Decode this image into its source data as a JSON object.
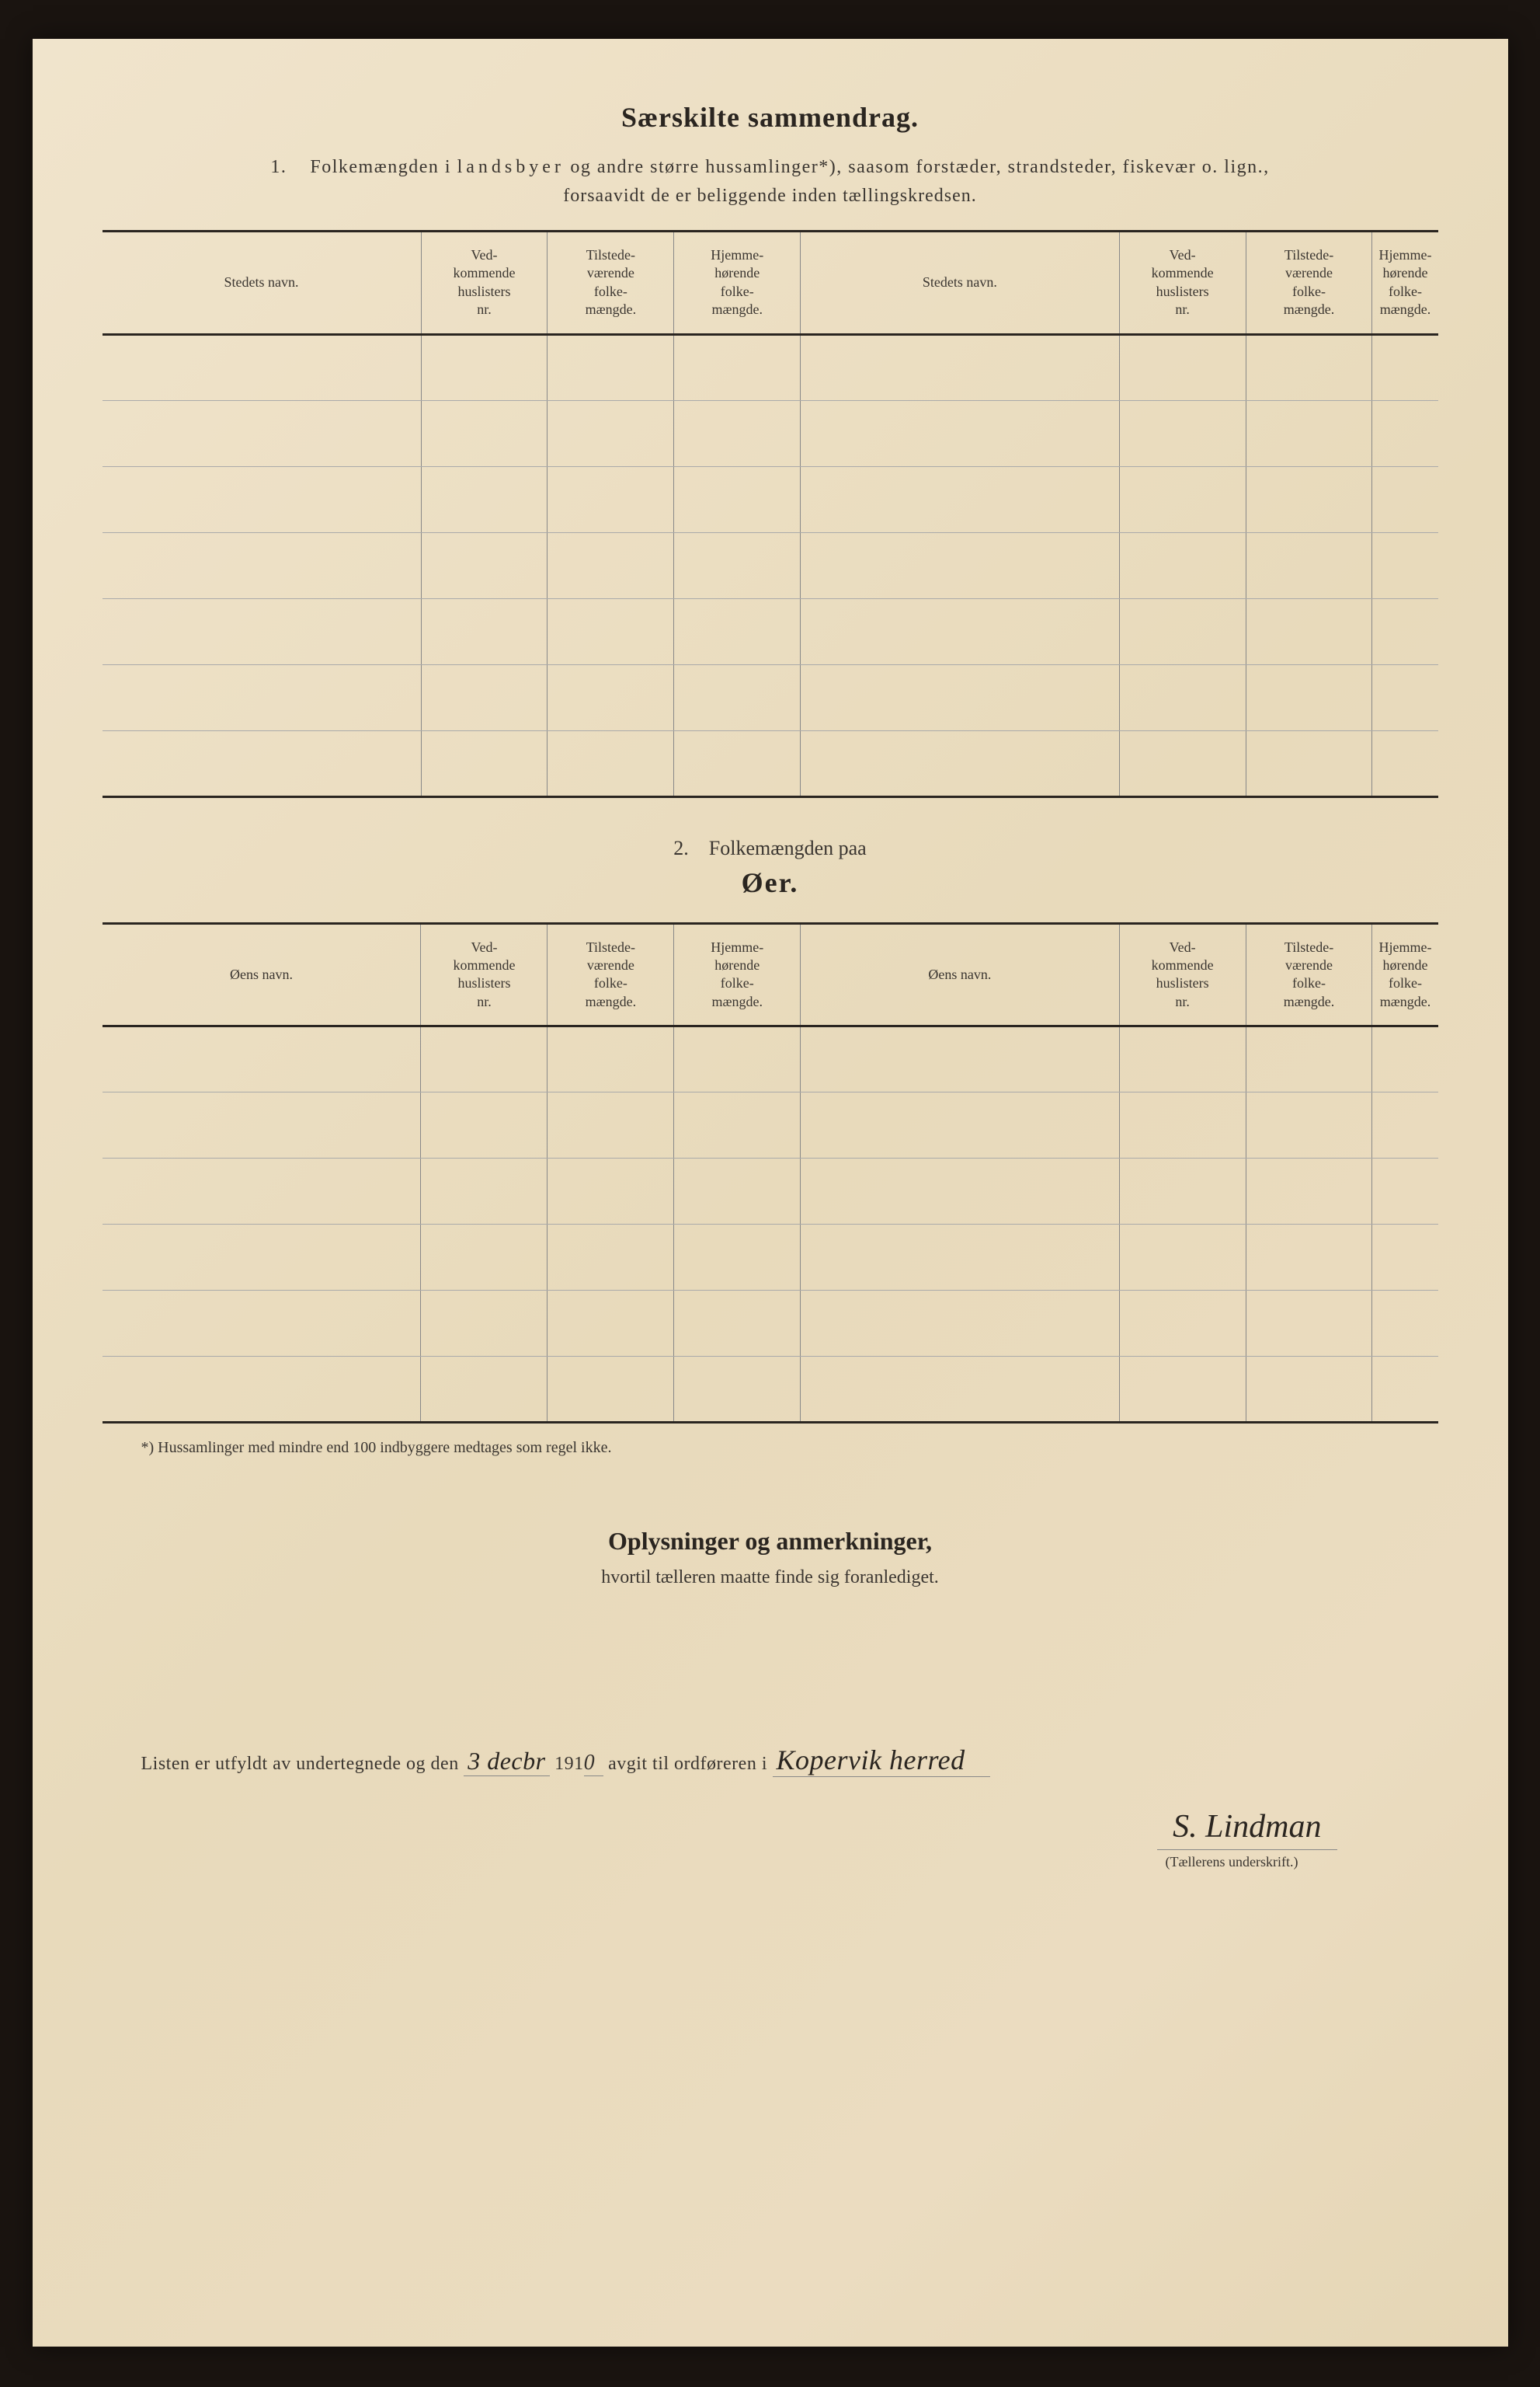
{
  "page": {
    "background_color": "#ebdcc0",
    "text_color": "#3a3530"
  },
  "main_title": "Særskilte sammendrag.",
  "section1": {
    "number": "1.",
    "description_part1": "Folkemængden i",
    "description_spaced": "landsbyer",
    "description_part2": "og andre større hussamlinger*), saasom forstæder, strandsteder, fiskevær o. lign.,",
    "description_line2": "forsaavidt de er beliggende inden tællingskredsen."
  },
  "table1": {
    "headers": {
      "col1": "Stedets navn.",
      "col2": "Ved-\nkommende\nhuslisters\nnr.",
      "col3": "Tilstede-\nværende\nfolke-\nmængde.",
      "col4": "Hjemme-\nhørende\nfolke-\nmængde.",
      "col5": "Stedets navn.",
      "col6": "Ved-\nkommende\nhuslisters\nnr.",
      "col7": "Tilstede-\nværende\nfolke-\nmængde.",
      "col8": "Hjemme-\nhørende\nfolke-\nmængde."
    },
    "row_count": 7
  },
  "section2": {
    "number": "2.",
    "title": "Folkemængden paa",
    "subtitle": "Øer."
  },
  "table2": {
    "headers": {
      "col1": "Øens navn.",
      "col2": "Ved-\nkommende\nhuslisters\nnr.",
      "col3": "Tilstede-\nværende\nfolke-\nmængde.",
      "col4": "Hjemme-\nhørende\nfolke-\nmængde.",
      "col5": "Øens navn.",
      "col6": "Ved-\nkommende\nhuslisters\nnr.",
      "col7": "Tilstede-\nværende\nfolke-\nmængde.",
      "col8": "Hjemme-\nhørende\nfolke-\nmængde."
    },
    "row_count": 6
  },
  "footnote": "*) Hussamlinger med mindre end 100 indbyggere medtages som regel ikke.",
  "info_section": {
    "title": "Oplysninger og anmerkninger,",
    "subtitle": "hvortil tælleren maatte finde sig foranlediget."
  },
  "signature_section": {
    "text_part1": "Listen er utfyldt av undertegnede og den",
    "date_handwritten": "3 decbr",
    "text_part2": "191",
    "year_digit": "0",
    "text_part3": "avgit til ordføreren i",
    "place_handwritten": "Kopervik herred",
    "signature_name": "S. Lindman",
    "signature_label": "(Tællerens underskrift.)"
  }
}
